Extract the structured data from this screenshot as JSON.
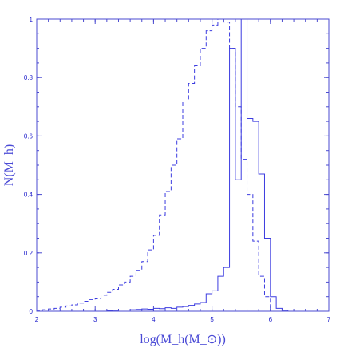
{
  "chart_data": {
    "type": "step",
    "xlabel": "log(M_h(M_⊙))",
    "ylabel": "N(M_h)",
    "xlim": [
      2,
      7
    ],
    "ylim": [
      0,
      1
    ],
    "x_ticks": [
      "2",
      "3",
      "4",
      "5",
      "6",
      "7"
    ],
    "y_ticks": [
      "0",
      "0.2",
      "0.4",
      "0.6",
      "0.8",
      "1"
    ],
    "x_tick_values": [
      2,
      3,
      4,
      5,
      6,
      7
    ],
    "y_tick_values": [
      0,
      0.2,
      0.4,
      0.6,
      0.8,
      1
    ],
    "series": [
      {
        "style": "solid",
        "x": [
          2.0,
          2.1,
          2.2,
          2.3,
          2.4,
          2.5,
          2.6,
          2.7,
          2.8,
          2.9,
          3.0,
          3.1,
          3.2,
          3.3,
          3.4,
          3.5,
          3.6,
          3.7,
          3.8,
          3.9,
          4.0,
          4.1,
          4.2,
          4.3,
          4.4,
          4.5,
          4.6,
          4.7,
          4.8,
          4.9,
          5.0,
          5.1,
          5.2,
          5.3,
          5.4,
          5.5,
          5.6,
          5.7,
          5.8,
          5.9,
          6.0,
          6.1,
          6.2,
          6.3,
          6.4,
          6.5,
          6.6,
          6.7,
          6.8,
          6.9
        ],
        "y": [
          0,
          0,
          0,
          0,
          0,
          0,
          0,
          0,
          0,
          0,
          0,
          0,
          0.002,
          0.003,
          0.004,
          0.004,
          0.005,
          0.006,
          0.008,
          0.007,
          0.01,
          0.009,
          0.012,
          0.01,
          0.014,
          0.016,
          0.02,
          0.025,
          0.03,
          0.06,
          0.07,
          0.12,
          0.15,
          0.9,
          0.45,
          1.0,
          0.66,
          0.65,
          0.47,
          0.25,
          0.05,
          0.01,
          0.003,
          0,
          0,
          0,
          0,
          0,
          0,
          0
        ]
      },
      {
        "style": "dashed",
        "x": [
          2.0,
          2.1,
          2.2,
          2.3,
          2.4,
          2.5,
          2.6,
          2.7,
          2.8,
          2.9,
          3.0,
          3.1,
          3.2,
          3.3,
          3.4,
          3.5,
          3.6,
          3.7,
          3.8,
          3.9,
          4.0,
          4.1,
          4.2,
          4.3,
          4.4,
          4.5,
          4.6,
          4.7,
          4.8,
          4.9,
          5.0,
          5.1,
          5.2,
          5.3,
          5.4,
          5.5,
          5.6,
          5.7,
          5.8,
          5.9,
          6.0,
          6.1,
          6.2,
          6.3,
          6.4,
          6.5,
          6.6,
          6.7,
          6.8,
          6.9
        ],
        "y": [
          0.003,
          0.005,
          0.008,
          0.01,
          0.014,
          0.018,
          0.022,
          0.028,
          0.034,
          0.04,
          0.045,
          0.055,
          0.065,
          0.075,
          0.09,
          0.1,
          0.12,
          0.14,
          0.17,
          0.21,
          0.26,
          0.33,
          0.41,
          0.5,
          0.59,
          0.72,
          0.78,
          0.84,
          0.9,
          0.96,
          0.98,
          1.0,
          0.99,
          0.9,
          0.7,
          0.52,
          0.4,
          0.24,
          0.12,
          0.05,
          0,
          0,
          0,
          0,
          0,
          0,
          0,
          0,
          0,
          0
        ]
      }
    ]
  }
}
